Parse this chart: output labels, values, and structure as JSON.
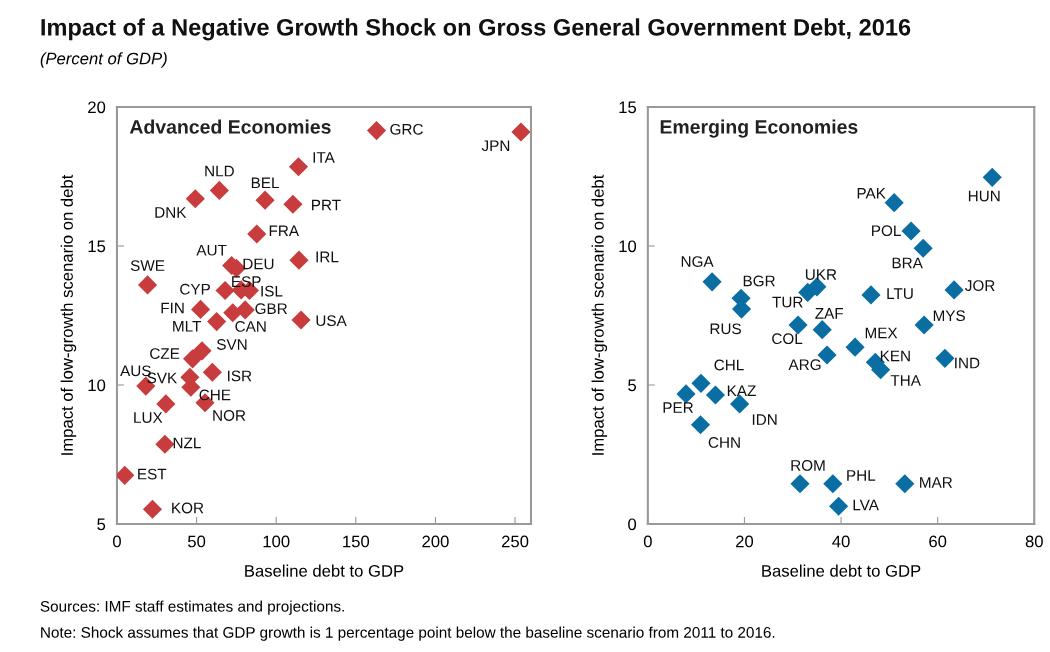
{
  "chart_data": [
    {
      "type": "scatter",
      "title": "Advanced Economies",
      "xlabel": "Baseline debt to GDP",
      "ylabel": "Impact of low-growth scenario on debt",
      "marker": "diamond",
      "grid": false,
      "legend": false,
      "xlim": [
        0,
        260
      ],
      "xticks": [
        0,
        50,
        100,
        150,
        200,
        250
      ],
      "ylim": [
        5,
        20
      ],
      "yticks": [
        5,
        10,
        15,
        20
      ],
      "series": [
        {
          "color": "#c83c3e",
          "x": [
            163,
            253.7,
            114,
            64.3,
            49.2,
            93,
            110.5,
            87.8,
            114.3,
            72,
            75,
            19.2,
            67.9,
            78,
            83.2,
            52.5,
            80.5,
            72.7,
            62.6,
            115.6,
            53.4,
            47.5,
            59.9,
            45.8,
            46.4,
            18.1,
            30.7,
            55.3,
            30.1,
            4.9,
            22.3
          ],
          "values": [
            19.15,
            19.1,
            17.85,
            17.0,
            16.7,
            16.65,
            16.5,
            15.43,
            14.49,
            14.3,
            14.2,
            13.6,
            13.4,
            13.42,
            13.4,
            12.72,
            12.7,
            12.6,
            12.28,
            12.34,
            11.23,
            10.94,
            10.46,
            10.28,
            9.92,
            9.96,
            9.32,
            9.36,
            7.87,
            6.75,
            5.53
          ]
        }
      ],
      "annotations": [
        "Impact of a Negative Growth Shock on Gross General Government Debt, 2016",
        "(Percent of GDP)",
        "Sources: IMF staff estimates and projections.",
        "Note: Shock assumes that GDP growth is 1 percentage point below the baseline scenario from 2011 to 2016.",
        {
          "text": "GRC",
          "x": 163,
          "y": 19.15
        },
        {
          "text": "JPN",
          "x": 253.7,
          "y": 19.1
        },
        {
          "text": "ITA",
          "x": 114,
          "y": 17.85
        },
        {
          "text": "NLD",
          "x": 64.3,
          "y": 17.0
        },
        {
          "text": "DNK",
          "x": 49.2,
          "y": 16.7
        },
        {
          "text": "BEL",
          "x": 93,
          "y": 16.65
        },
        {
          "text": "PRT",
          "x": 110.5,
          "y": 16.5
        },
        {
          "text": "FRA",
          "x": 87.8,
          "y": 15.43
        },
        {
          "text": "IRL",
          "x": 114.3,
          "y": 14.49
        },
        {
          "text": "AUT",
          "x": 72,
          "y": 14.3
        },
        {
          "text": "DEU",
          "x": 75,
          "y": 14.2
        },
        {
          "text": "SWE",
          "x": 19.2,
          "y": 13.6
        },
        {
          "text": "CYP",
          "x": 67.9,
          "y": 13.4
        },
        {
          "text": "ESP",
          "x": 78,
          "y": 13.42
        },
        {
          "text": "ISL",
          "x": 83.2,
          "y": 13.4
        },
        {
          "text": "FIN",
          "x": 52.5,
          "y": 12.72
        },
        {
          "text": "GBR",
          "x": 80.5,
          "y": 12.7
        },
        {
          "text": "CAN",
          "x": 72.7,
          "y": 12.6
        },
        {
          "text": "MLT",
          "x": 62.6,
          "y": 12.28
        },
        {
          "text": "USA",
          "x": 115.6,
          "y": 12.34
        },
        {
          "text": "SVN",
          "x": 53.4,
          "y": 11.23
        },
        {
          "text": "CZE",
          "x": 47.5,
          "y": 10.94
        },
        {
          "text": "ISR",
          "x": 59.9,
          "y": 10.46
        },
        {
          "text": "SVK",
          "x": 45.8,
          "y": 10.28
        },
        {
          "text": "CHE",
          "x": 46.4,
          "y": 9.92
        },
        {
          "text": "AUS",
          "x": 18.1,
          "y": 9.96
        },
        {
          "text": "LUX",
          "x": 30.7,
          "y": 9.32
        },
        {
          "text": "NOR",
          "x": 55.3,
          "y": 9.36
        },
        {
          "text": "NZL",
          "x": 30.1,
          "y": 7.87
        },
        {
          "text": "EST",
          "x": 4.9,
          "y": 6.75
        },
        {
          "text": "KOR",
          "x": 22.3,
          "y": 5.53
        }
      ]
    },
    {
      "type": "scatter",
      "title": "Emerging Economies",
      "xlabel": "Baseline debt to GDP",
      "ylabel": "Impact of low-growth scenario on debt",
      "marker": "diamond",
      "grid": false,
      "legend": false,
      "xlim": [
        0,
        80
      ],
      "xticks": [
        0,
        20,
        40,
        60,
        80
      ],
      "ylim": [
        0,
        15
      ],
      "yticks": [
        0,
        5,
        10,
        15
      ],
      "series": [
        {
          "color": "#0a6ea2",
          "x": [
            71.3,
            51.0,
            54.5,
            57.0,
            13.3,
            19.3,
            19.4,
            33.1,
            35.0,
            46.2,
            63.4,
            31.1,
            36.1,
            57.2,
            42.9,
            37.1,
            47.1,
            48.2,
            61.5,
            11.0,
            7.9,
            14.0,
            19.0,
            10.9,
            31.5,
            38.3,
            53.2,
            39.5
          ],
          "values": [
            12.47,
            11.56,
            10.54,
            9.92,
            8.71,
            8.12,
            7.73,
            8.33,
            8.53,
            8.24,
            8.42,
            7.16,
            6.99,
            7.16,
            6.36,
            6.08,
            5.82,
            5.55,
            5.96,
            5.06,
            4.68,
            4.64,
            4.32,
            3.57,
            1.45,
            1.45,
            1.45,
            0.64
          ]
        }
      ],
      "annotations": [
        {
          "text": "HUN",
          "x": 71.3,
          "y": 12.47
        },
        {
          "text": "PAK",
          "x": 51.0,
          "y": 11.56
        },
        {
          "text": "POL",
          "x": 54.5,
          "y": 10.54
        },
        {
          "text": "BRA",
          "x": 57.0,
          "y": 9.92
        },
        {
          "text": "NGA",
          "x": 13.3,
          "y": 8.71
        },
        {
          "text": "BGR",
          "x": 19.3,
          "y": 8.12
        },
        {
          "text": "RUS",
          "x": 19.4,
          "y": 7.73
        },
        {
          "text": "TUR",
          "x": 33.1,
          "y": 8.33
        },
        {
          "text": "UKR",
          "x": 35.0,
          "y": 8.53
        },
        {
          "text": "LTU",
          "x": 46.2,
          "y": 8.24
        },
        {
          "text": "JOR",
          "x": 63.4,
          "y": 8.42
        },
        {
          "text": "COL",
          "x": 31.1,
          "y": 7.16
        },
        {
          "text": "ZAF",
          "x": 36.1,
          "y": 6.99
        },
        {
          "text": "MYS",
          "x": 57.2,
          "y": 7.16
        },
        {
          "text": "MEX",
          "x": 42.9,
          "y": 6.36
        },
        {
          "text": "ARG",
          "x": 37.1,
          "y": 6.08
        },
        {
          "text": "KEN",
          "x": 47.1,
          "y": 5.82
        },
        {
          "text": "THA",
          "x": 48.2,
          "y": 5.55
        },
        {
          "text": "IND",
          "x": 61.5,
          "y": 5.96
        },
        {
          "text": "CHL",
          "x": 11.0,
          "y": 5.06
        },
        {
          "text": "PER",
          "x": 7.9,
          "y": 4.68
        },
        {
          "text": "KAZ",
          "x": 14.0,
          "y": 4.64
        },
        {
          "text": "IDN",
          "x": 19.0,
          "y": 4.32
        },
        {
          "text": "CHN",
          "x": 10.9,
          "y": 3.57
        },
        {
          "text": "ROM",
          "x": 31.5,
          "y": 1.45
        },
        {
          "text": "PHL",
          "x": 38.3,
          "y": 1.45
        },
        {
          "text": "MAR",
          "x": 53.2,
          "y": 1.45
        },
        {
          "text": "LVA",
          "x": 39.5,
          "y": 0.64
        }
      ]
    }
  ]
}
